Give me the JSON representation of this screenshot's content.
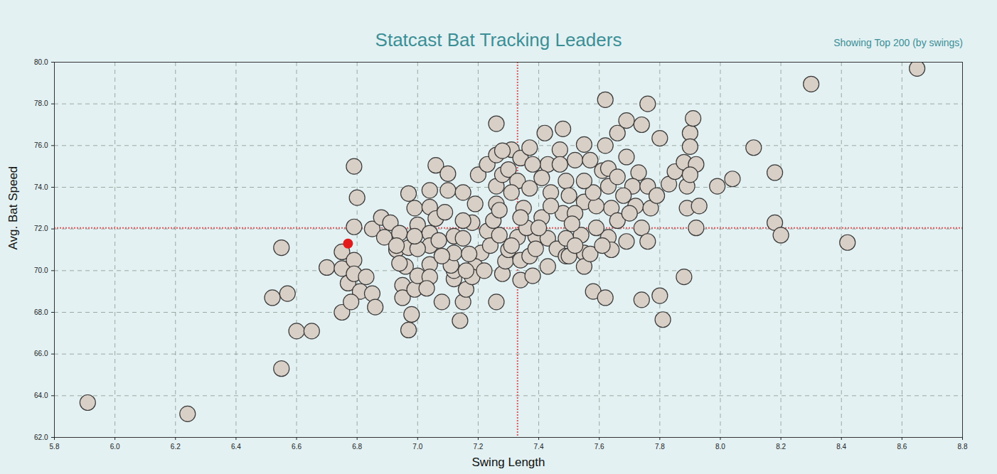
{
  "chart_data": {
    "type": "scatter",
    "title": "Statcast Bat Tracking Leaders",
    "subtitle": "Showing Top 200 (by swings)",
    "x_label": "Swing Length",
    "y_label": "Avg. Bat Speed",
    "xlim": [
      5.8,
      8.8
    ],
    "xticks": [
      5.8,
      {
        "value": 6,
        "label": "6.0"
      },
      6.2,
      6.4,
      6.6,
      6.8,
      {
        "value": 7,
        "label": "7.0"
      },
      7.2,
      7.4,
      7.6,
      7.8,
      {
        "value": 8,
        "label": "8.0"
      },
      8.2,
      8.4,
      8.6,
      8.8
    ],
    "ylim": [
      62,
      80
    ],
    "yticks": [
      {
        "value": 62,
        "label": "62.0"
      },
      {
        "value": 64,
        "label": "64.0"
      },
      {
        "value": 66,
        "label": "66.0"
      },
      {
        "value": 68,
        "label": "68.0"
      },
      {
        "value": 70,
        "label": "70.0"
      },
      {
        "value": 72,
        "label": "72.0"
      },
      {
        "value": 74,
        "label": "74.0"
      },
      {
        "value": 76,
        "label": "76.0"
      },
      {
        "value": 78,
        "label": "78.0"
      },
      {
        "value": 80,
        "label": "80.0"
      }
    ],
    "grid": true,
    "vline": 7.33,
    "hline": 72.05,
    "series": [
      {
        "color": "#d8cfc6",
        "marker": "circle",
        "x": [
          5.91,
          6.24,
          6.55,
          6.55,
          6.52,
          6.57,
          6.6,
          6.65,
          6.7,
          6.75,
          6.75,
          6.79,
          6.8,
          6.79,
          6.75,
          6.77,
          6.79,
          6.79,
          6.83,
          6.81,
          6.78,
          6.85,
          6.86,
          6.85,
          6.88,
          6.91,
          6.89,
          6.93,
          6.94,
          6.97,
          6.97,
          6.96,
          6.95,
          6.95,
          6.97,
          6.98,
          6.99,
          7,
          6.99,
          7,
          7.04,
          7.06,
          7.1,
          7.1,
          7.04,
          7.06,
          7.09,
          7.04,
          7.04,
          7.04,
          7.04,
          7.08,
          7.14,
          7.15,
          7.16,
          7.12,
          7.12,
          7.11,
          7.12,
          7.12,
          7.15,
          7.15,
          7.19,
          7.2,
          7.23,
          7.26,
          7.26,
          7.26,
          7.26,
          7.23,
          7.21,
          7.19,
          7.18,
          7.22,
          7.26,
          7.28,
          7.29,
          7.3,
          7.28,
          7.3,
          7.31,
          7.28,
          7.34,
          7.33,
          7.33,
          7.34,
          7.34,
          7.37,
          7.38,
          7.39,
          7.35,
          7.37,
          7.37,
          7.42,
          7.48,
          7.41,
          7.43,
          7.43,
          7.46,
          7.43,
          7.47,
          7.49,
          7.48,
          7.49,
          7.49,
          7.52,
          7.55,
          7.57,
          7.62,
          7.61,
          7.55,
          7.52,
          7.54,
          7.55,
          7.55,
          7.57,
          7.58,
          7.62,
          7.62,
          7.66,
          7.69,
          7.74,
          7.76,
          7.63,
          7.69,
          7.63,
          7.64,
          7.66,
          7.63,
          7.64,
          7.69,
          7.73,
          7.71,
          7.76,
          7.72,
          7.74,
          7.76,
          7.74,
          7.8,
          7.81,
          7.8,
          7.77,
          7.79,
          7.83,
          7.85,
          7.88,
          7.89,
          7.89,
          7.88,
          7.9,
          7.91,
          7.9,
          7.92,
          7.9,
          7.93,
          7.92,
          7.99,
          8.04,
          8.11,
          8.18,
          8.18,
          8.2,
          8.3,
          8.42,
          8.65,
          6.94,
          6.93,
          7.07,
          7.08,
          7.17,
          7.18,
          7.24,
          7.27,
          7.31,
          7.36,
          7.39,
          7.41,
          7.44,
          7.44,
          7.5,
          7.51,
          7.59,
          7.58,
          7.59,
          7.68,
          7.7,
          7.47,
          7.38,
          7.25,
          7.15,
          7,
          7.03,
          6.99,
          7.34,
          7.4,
          7.5,
          7.52,
          7.61,
          7.55,
          7.66,
          7.31,
          7.27,
          7.16
        ],
        "y": [
          63.67,
          63.13,
          65.3,
          71.1,
          68.7,
          68.9,
          67.1,
          67.1,
          70.15,
          70.9,
          68,
          75,
          73.5,
          72.1,
          70.1,
          69.4,
          70.5,
          69.85,
          69.7,
          69,
          68.5,
          68.9,
          68.25,
          72,
          72.55,
          72.3,
          71.6,
          71,
          71.8,
          73.7,
          71.1,
          70.2,
          69.3,
          68.7,
          67.15,
          67.9,
          69.1,
          69.75,
          73,
          72.2,
          73.85,
          75.05,
          74.65,
          73.85,
          73.05,
          72.5,
          72.8,
          71.8,
          71.2,
          70.3,
          69.7,
          68.5,
          67.6,
          68.5,
          69.1,
          69.6,
          70,
          70.25,
          70.85,
          71.65,
          71.55,
          73.75,
          73.2,
          74.6,
          75.1,
          75.55,
          77.05,
          74.05,
          73.2,
          71.9,
          70.85,
          70.2,
          69.7,
          70,
          68.5,
          69.85,
          70.45,
          71,
          74.6,
          74.85,
          75.8,
          75.75,
          75.4,
          74.3,
          71.6,
          70.5,
          69.55,
          70.7,
          69.75,
          71.65,
          73,
          73.95,
          75.9,
          76.6,
          76.8,
          72.55,
          70.2,
          71.55,
          71.05,
          75.1,
          75.8,
          74.3,
          72.75,
          71.55,
          70.7,
          75.3,
          76.05,
          75.3,
          76,
          74.8,
          73.3,
          72.75,
          71.7,
          70.85,
          70.2,
          70.8,
          69,
          68.7,
          78.2,
          76.6,
          77.2,
          77,
          78,
          74.9,
          75.45,
          74.05,
          73,
          72.4,
          71.6,
          71,
          71.4,
          74.7,
          74.05,
          74.05,
          73.1,
          72.05,
          71.4,
          68.6,
          68.8,
          67.65,
          76.35,
          73,
          73.6,
          74.15,
          74.75,
          75.2,
          74.05,
          73,
          69.7,
          76.6,
          77.3,
          75.95,
          75.1,
          74.6,
          73.1,
          72.05,
          74.05,
          74.4,
          75.9,
          74.7,
          72.3,
          71.7,
          78.95,
          71.35,
          79.7,
          70.35,
          71.2,
          71.45,
          70.7,
          70.8,
          72.3,
          71.2,
          71.7,
          71.2,
          72.05,
          71.05,
          74.45,
          73.75,
          73.1,
          73.6,
          72.25,
          73.1,
          73.75,
          72.05,
          73.6,
          72.75,
          75.1,
          75.1,
          72.4,
          72.4,
          71.05,
          69.15,
          71.65,
          72.55,
          72.05,
          70.7,
          71.2,
          71.2,
          74.3,
          74.5,
          73.75,
          72.9,
          70
        ]
      },
      {
        "color": "#e31a1c",
        "marker": "dot",
        "x": [
          6.77
        ],
        "y": [
          71.3
        ]
      }
    ]
  }
}
